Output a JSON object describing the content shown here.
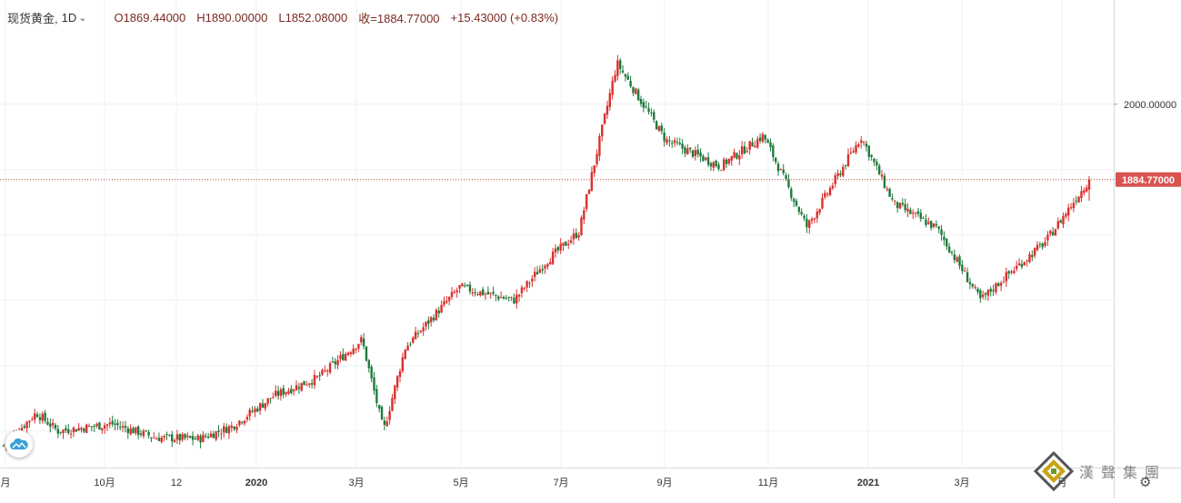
{
  "legend": {
    "symbol": "现货黄金,",
    "timeframe": "1D",
    "open": "O1869.44000",
    "high": "H1890.00000",
    "low": "L1852.08000",
    "close": "收=1884.77000",
    "change": "+15.43000 (+0.83%)"
  },
  "price_axis": {
    "current_label": "1884.77000",
    "current_value": 1884.77
  },
  "brand": {
    "text": "漢聲集團"
  },
  "colors": {
    "up": "#d9302c",
    "down": "#1f7a3c",
    "price_line": "#c0392b",
    "grid": "#eef0f3",
    "badge": "#d9534f"
  },
  "chart_data": {
    "type": "candlestick",
    "title": "",
    "xlabel": "",
    "ylabel": "",
    "ylim": [
      1465,
      2090
    ],
    "x_ticks": [
      "月",
      "10月",
      "12",
      "2020",
      "3月",
      "5月",
      "7月",
      "9月",
      "11月",
      "2021",
      "3月",
      "月"
    ],
    "y_ticks": [
      {
        "value": 2000,
        "label": "2000.00000"
      }
    ],
    "grid": true,
    "close_path": [
      {
        "t": 0,
        "v": 1478
      },
      {
        "t": 0.03,
        "v": 1528
      },
      {
        "t": 0.05,
        "v": 1500
      },
      {
        "t": 0.1,
        "v": 1511
      },
      {
        "t": 0.14,
        "v": 1490
      },
      {
        "t": 0.18,
        "v": 1488
      },
      {
        "t": 0.21,
        "v": 1507
      },
      {
        "t": 0.25,
        "v": 1555
      },
      {
        "t": 0.29,
        "v": 1582
      },
      {
        "t": 0.33,
        "v": 1640
      },
      {
        "t": 0.35,
        "v": 1500
      },
      {
        "t": 0.37,
        "v": 1628
      },
      {
        "t": 0.42,
        "v": 1720
      },
      {
        "t": 0.47,
        "v": 1700
      },
      {
        "t": 0.5,
        "v": 1760
      },
      {
        "t": 0.53,
        "v": 1805
      },
      {
        "t": 0.565,
        "v": 2063
      },
      {
        "t": 0.61,
        "v": 1945
      },
      {
        "t": 0.66,
        "v": 1905
      },
      {
        "t": 0.7,
        "v": 1952
      },
      {
        "t": 0.74,
        "v": 1812
      },
      {
        "t": 0.79,
        "v": 1950
      },
      {
        "t": 0.82,
        "v": 1848
      },
      {
        "t": 0.86,
        "v": 1810
      },
      {
        "t": 0.9,
        "v": 1700
      },
      {
        "t": 0.92,
        "v": 1732
      },
      {
        "t": 0.96,
        "v": 1790
      },
      {
        "t": 1.0,
        "v": 1884.77
      }
    ],
    "last_bar": {
      "open": 1869.44,
      "high": 1890.0,
      "low": 1852.08,
      "close": 1884.77
    }
  }
}
